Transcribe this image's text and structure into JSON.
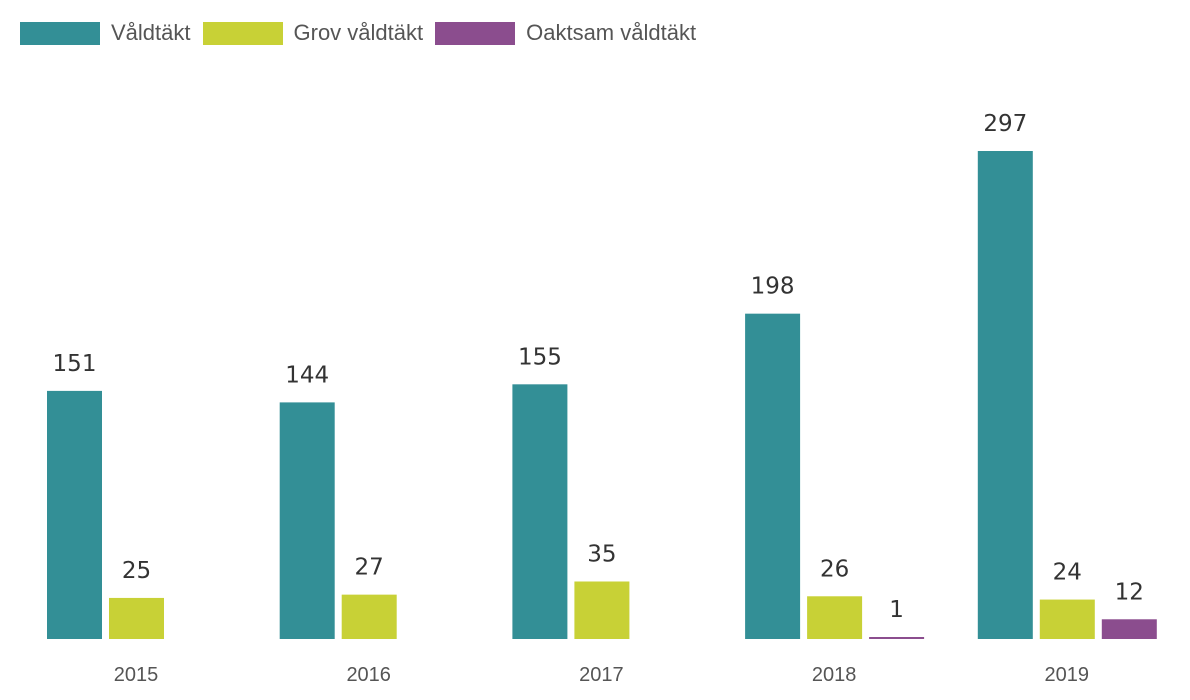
{
  "chart_data": {
    "type": "bar",
    "title": "",
    "xlabel": "",
    "ylabel": "",
    "categories": [
      "2015",
      "2016",
      "2017",
      "2018",
      "2019"
    ],
    "series": [
      {
        "name": "Våldtäkt",
        "color": "#338f96",
        "values": [
          151,
          144,
          155,
          198,
          297
        ]
      },
      {
        "name": "Grov våldtäkt",
        "color": "#c8d136",
        "values": [
          25,
          27,
          35,
          26,
          24
        ]
      },
      {
        "name": "Oaktsam våldtäkt",
        "color": "#8b4d8e",
        "values": [
          null,
          null,
          null,
          1,
          12
        ]
      }
    ],
    "ylim": [
      0,
      297
    ],
    "grid": false,
    "legend": "top-left",
    "data_labels": true
  }
}
